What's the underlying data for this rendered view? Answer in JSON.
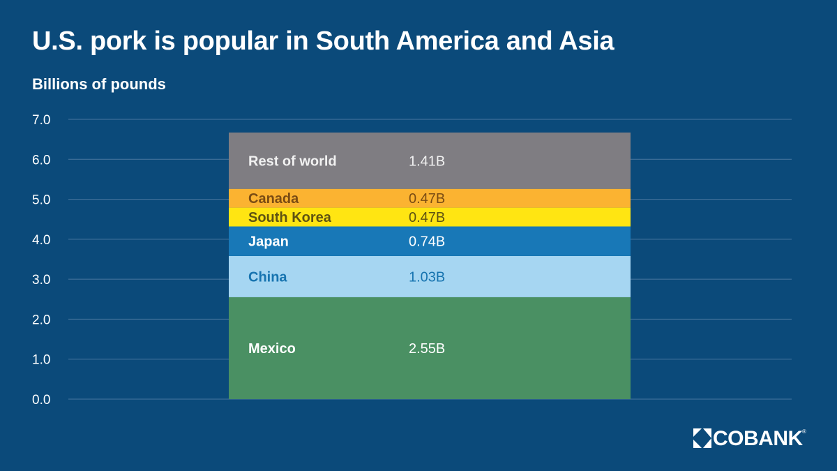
{
  "chart_data": {
    "type": "bar",
    "stacked": true,
    "title": "U.S. pork is popular in South America and Asia",
    "ylabel": "Billions of pounds",
    "ylim": [
      0,
      7
    ],
    "yticks": [
      "0.0",
      "1.0",
      "2.0",
      "3.0",
      "4.0",
      "5.0",
      "6.0",
      "7.0"
    ],
    "grid": true,
    "categories": [
      ""
    ],
    "series": [
      {
        "name": "Mexico",
        "value": 2.55,
        "label": "2.55B",
        "color": "#4a9063",
        "text_color": "#ffffff"
      },
      {
        "name": "China",
        "value": 1.03,
        "label": "1.03B",
        "color": "#a6d6f2",
        "text_color": "#1774b0"
      },
      {
        "name": "Japan",
        "value": 0.74,
        "label": "0.74B",
        "color": "#1878b7",
        "text_color": "#ffffff"
      },
      {
        "name": "South Korea",
        "value": 0.47,
        "label": "0.47B",
        "color": "#ffe512",
        "text_color": "#5f5312"
      },
      {
        "name": "Canada",
        "value": 0.47,
        "label": "0.47B",
        "color": "#fbb331",
        "text_color": "#7a4c14"
      },
      {
        "name": "Rest of world",
        "value": 1.41,
        "label": "1.41B",
        "color": "#7f7d82",
        "text_color": "#f1f1f1"
      }
    ]
  },
  "colors": {
    "background": "#0b4a7a",
    "gridline": "#4a77a0",
    "tick_text": "#ffffff"
  },
  "logo": {
    "text": "COBANK",
    "reg": "®"
  }
}
